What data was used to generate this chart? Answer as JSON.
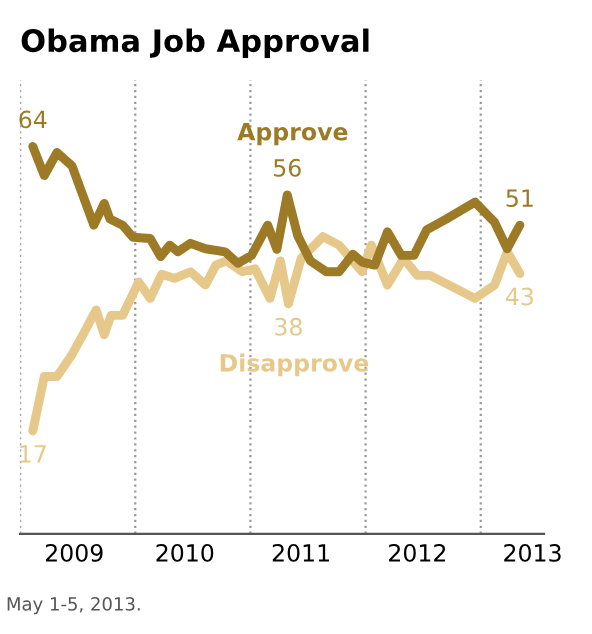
{
  "chart_data": {
    "type": "line",
    "title": "Obama Job Approval",
    "xlim": [
      2009,
      2013.55
    ],
    "ylim": [
      0,
      75
    ],
    "xticks": [
      {
        "value": 2009.47,
        "label": "2009"
      },
      {
        "value": 2010.43,
        "label": "2010"
      },
      {
        "value": 2011.44,
        "label": "2011"
      },
      {
        "value": 2012.45,
        "label": "2012"
      },
      {
        "value": 2013.45,
        "label": "2013"
      }
    ],
    "tick_labels": "x",
    "ref_lines": [
      {
        "axis": "x",
        "value": 2009,
        "color": "#999999",
        "line_style": "dotted"
      },
      {
        "axis": "x",
        "value": 2010,
        "color": "#999999",
        "line_style": "dotted"
      },
      {
        "axis": "x",
        "value": 2011,
        "color": "#999999",
        "line_style": "dotted"
      },
      {
        "axis": "x",
        "value": 2012,
        "color": "#999999",
        "line_style": "dotted"
      },
      {
        "axis": "x",
        "value": 2013,
        "color": "#999999",
        "line_style": "dotted"
      }
    ],
    "series": [
      {
        "name": "Approve",
        "color": "#9c7a26",
        "x": [
          2009.11,
          2009.21,
          2009.32,
          2009.45,
          2009.64,
          2009.73,
          2009.78,
          2009.89,
          2009.98,
          2010.13,
          2010.22,
          2010.3,
          2010.37,
          2010.48,
          2010.61,
          2010.78,
          2010.89,
          2011.01,
          2011.15,
          2011.23,
          2011.32,
          2011.41,
          2011.52,
          2011.66,
          2011.77,
          2011.89,
          2011.97,
          2012.08,
          2012.19,
          2012.31,
          2012.42,
          2012.53,
          2012.7,
          2012.95,
          2013.12,
          2013.23,
          2013.34
        ],
        "values": [
          64,
          59.2,
          63,
          60.8,
          51,
          54.6,
          52,
          51,
          49,
          48.8,
          45.8,
          47.7,
          46.6,
          48,
          47.1,
          46.6,
          44.7,
          46,
          51,
          47,
          56,
          49.3,
          45.1,
          43.3,
          43.3,
          46.2,
          44.9,
          44.4,
          49.9,
          46,
          46,
          50.2,
          52,
          54.8,
          51.5,
          47.1,
          51
        ],
        "value_labels": [
          "64",
          null,
          null,
          null,
          null,
          null,
          null,
          null,
          null,
          null,
          null,
          null,
          null,
          null,
          null,
          null,
          null,
          null,
          null,
          null,
          "56",
          null,
          null,
          null,
          null,
          null,
          null,
          null,
          null,
          null,
          null,
          null,
          null,
          null,
          null,
          null,
          "51"
        ]
      },
      {
        "name": "Disapprove",
        "color": "#e6c98a",
        "x": [
          2009.11,
          2009.21,
          2009.32,
          2009.45,
          2009.56,
          2009.66,
          2009.73,
          2009.79,
          2009.89,
          2010.03,
          2010.13,
          2010.23,
          2010.34,
          2010.48,
          2010.61,
          2010.7,
          2010.79,
          2010.93,
          2011.04,
          2011.17,
          2011.26,
          2011.33,
          2011.44,
          2011.63,
          2011.77,
          2011.97,
          2012.05,
          2012.19,
          2012.33,
          2012.45,
          2012.56,
          2012.95,
          2013.12,
          2013.23,
          2013.34
        ],
        "values": [
          17,
          26,
          26,
          29.6,
          33.4,
          37,
          32.9,
          36.1,
          36.1,
          41.6,
          38.9,
          42.9,
          42.2,
          43.3,
          41.1,
          44.4,
          45.1,
          43.3,
          43.8,
          38.9,
          45.1,
          38,
          45.5,
          49.1,
          47.7,
          43.3,
          47.7,
          41.1,
          45.5,
          42.7,
          42.7,
          38.9,
          41.1,
          46.6,
          43
        ],
        "value_labels": [
          "17",
          null,
          null,
          null,
          null,
          null,
          null,
          null,
          null,
          null,
          null,
          null,
          null,
          null,
          null,
          null,
          null,
          null,
          null,
          null,
          null,
          "38",
          null,
          null,
          null,
          null,
          null,
          null,
          null,
          null,
          null,
          null,
          null,
          null,
          "43"
        ]
      }
    ],
    "annotations": [
      "May 1-5, 2013."
    ]
  }
}
